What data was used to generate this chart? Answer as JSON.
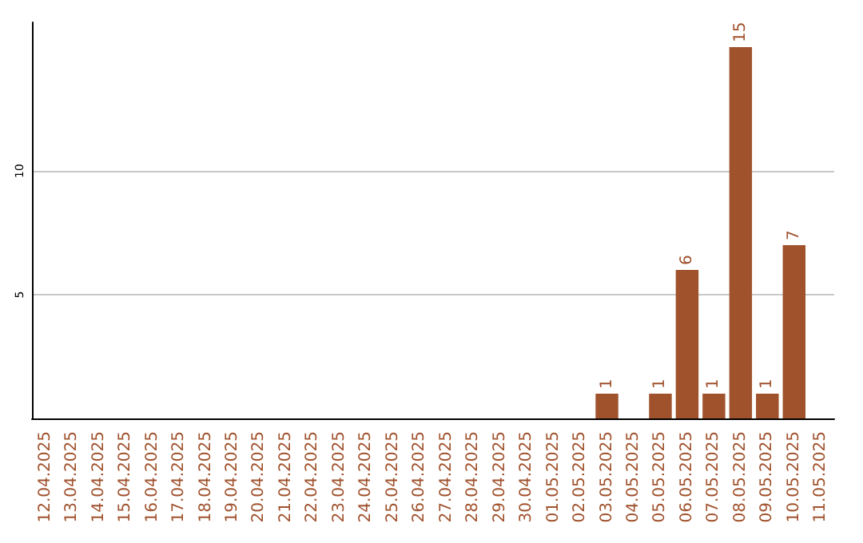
{
  "chart_data": {
    "type": "bar",
    "categories": [
      "12.04.2025",
      "13.04.2025",
      "14.04.2025",
      "15.04.2025",
      "16.04.2025",
      "17.04.2025",
      "18.04.2025",
      "19.04.2025",
      "20.04.2025",
      "21.04.2025",
      "22.04.2025",
      "23.04.2025",
      "24.04.2025",
      "25.04.2025",
      "26.04.2025",
      "27.04.2025",
      "28.04.2025",
      "29.04.2025",
      "30.04.2025",
      "01.05.2025",
      "02.05.2025",
      "03.05.2025",
      "04.05.2025",
      "05.05.2025",
      "06.05.2025",
      "07.05.2025",
      "08.05.2025",
      "09.05.2025",
      "10.05.2025",
      "11.05.2025"
    ],
    "values": [
      0,
      0,
      0,
      0,
      0,
      0,
      0,
      0,
      0,
      0,
      0,
      0,
      0,
      0,
      0,
      0,
      0,
      0,
      0,
      0,
      0,
      1,
      0,
      1,
      6,
      1,
      15,
      1,
      7,
      0
    ],
    "value_labels": [
      null,
      null,
      null,
      null,
      null,
      null,
      null,
      null,
      null,
      null,
      null,
      null,
      null,
      null,
      null,
      null,
      null,
      null,
      null,
      null,
      null,
      "1",
      null,
      "1",
      "6",
      "1",
      "15",
      "1",
      "7",
      null
    ],
    "color": "#a0522d",
    "ylim": [
      0,
      16
    ],
    "yticks": [
      5,
      10
    ],
    "grid": "y"
  }
}
